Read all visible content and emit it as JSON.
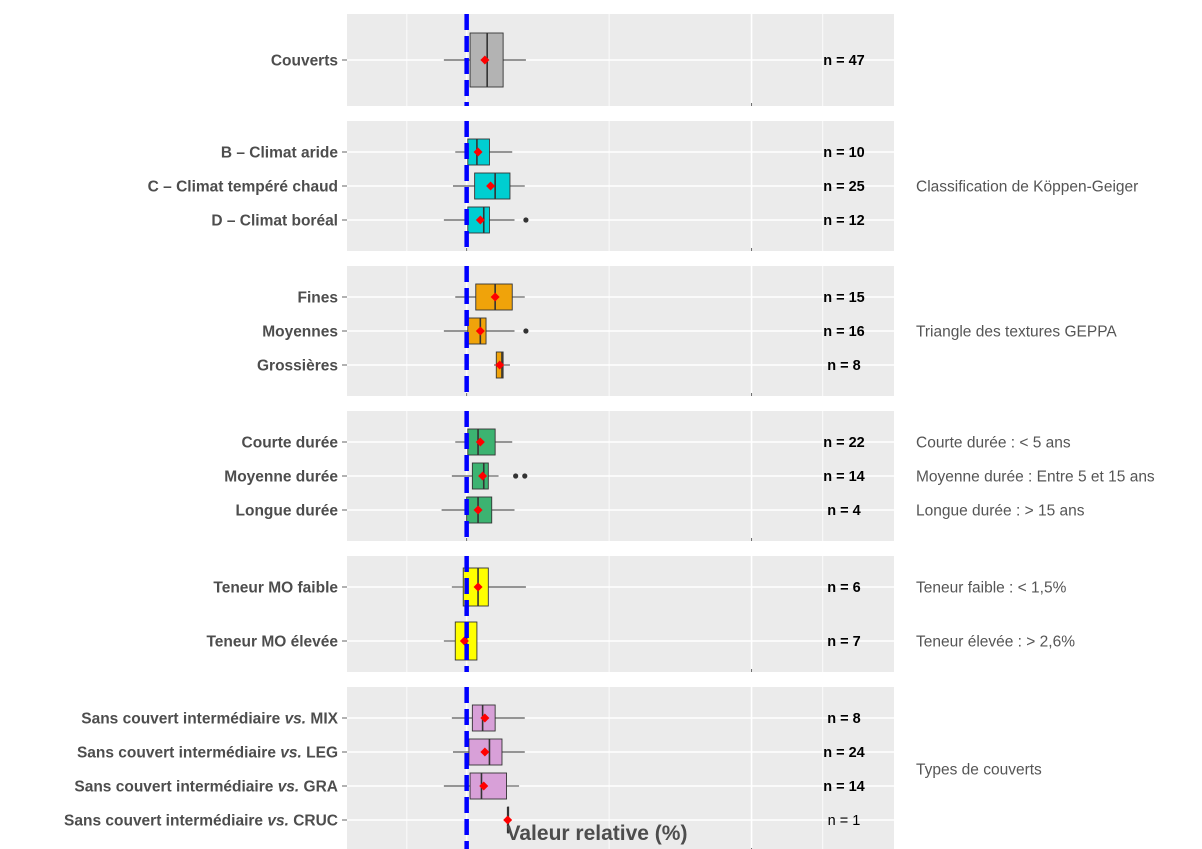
{
  "chart_data": {
    "type": "boxplot",
    "xlabel": "Valeur relative (%)",
    "x_ticks": [
      0,
      250
    ],
    "xlim": [
      -105,
      375
    ],
    "reference_line_x": 0,
    "colors": {
      "panel_bg": "#ebebeb",
      "grid": "#ffffff",
      "box_outline": "#333333",
      "mean_marker": "#ff0000",
      "reference_line": "#0000ff",
      "outlier": "#333333"
    },
    "groups": [
      {
        "note_lines": [],
        "color": "#b3b3b3",
        "categories": [
          {
            "label": "Couverts",
            "label_italic": "",
            "label_suffix": "",
            "n_text": "n = 47",
            "n_bold": true,
            "whisker_low": -20,
            "q1": 3,
            "median": 18,
            "q3": 32,
            "whisker_high": 52,
            "mean": 16,
            "outliers": []
          }
        ]
      },
      {
        "note_lines": [
          {
            "text": "Classification de Köppen-Geiger",
            "row": 1
          }
        ],
        "color": "#00ced1",
        "categories": [
          {
            "label": "B – Climat aride",
            "label_italic": "",
            "label_suffix": "",
            "n_text": "n = 10",
            "n_bold": true,
            "whisker_low": -10,
            "q1": 1,
            "median": 9,
            "q3": 20,
            "whisker_high": 40,
            "mean": 10,
            "outliers": []
          },
          {
            "label": "C – Climat tempéré chaud",
            "label_italic": "",
            "label_suffix": "",
            "n_text": "n = 25",
            "n_bold": true,
            "whisker_low": -12,
            "q1": 7,
            "median": 25,
            "q3": 38,
            "whisker_high": 51,
            "mean": 21,
            "outliers": []
          },
          {
            "label": "D – Climat boréal",
            "label_italic": "",
            "label_suffix": "",
            "n_text": "n = 12",
            "n_bold": true,
            "whisker_low": -20,
            "q1": 1,
            "median": 15,
            "q3": 20,
            "whisker_high": 42,
            "mean": 12,
            "outliers": [
              52
            ]
          }
        ]
      },
      {
        "note_lines": [
          {
            "text": "Triangle des textures GEPPA",
            "row": 1
          }
        ],
        "color": "#f0a30a",
        "categories": [
          {
            "label": "Fines",
            "label_italic": "",
            "label_suffix": "",
            "n_text": "n = 15",
            "n_bold": true,
            "whisker_low": -10,
            "q1": 8,
            "median": 25,
            "q3": 40,
            "whisker_high": 51,
            "mean": 25,
            "outliers": []
          },
          {
            "label": "Moyennes",
            "label_italic": "",
            "label_suffix": "",
            "n_text": "n = 16",
            "n_bold": true,
            "whisker_low": -20,
            "q1": 1,
            "median": 12,
            "q3": 17,
            "whisker_high": 42,
            "mean": 12,
            "outliers": [
              52
            ]
          },
          {
            "label": "Grossières",
            "label_italic": "",
            "label_suffix": "",
            "n_text": "n = 8",
            "n_bold": true,
            "whisker_low": 24,
            "q1": 26,
            "median": 31,
            "q3": 32,
            "whisker_high": 38,
            "mean": 29,
            "outliers": []
          }
        ]
      },
      {
        "note_lines": [
          {
            "text": "Courte durée : < 5 ans",
            "row": 0
          },
          {
            "text": "Moyenne durée : Entre 5 et 15 ans",
            "row": 1
          },
          {
            "text": "Longue durée : > 15 ans",
            "row": 2
          }
        ],
        "color": "#3cb371",
        "categories": [
          {
            "label": "Courte durée",
            "label_italic": "",
            "label_suffix": "",
            "n_text": "n = 22",
            "n_bold": true,
            "whisker_low": -10,
            "q1": 1,
            "median": 10,
            "q3": 25,
            "whisker_high": 40,
            "mean": 12,
            "outliers": []
          },
          {
            "label": "Moyenne durée",
            "label_italic": "",
            "label_suffix": "",
            "n_text": "n = 14",
            "n_bold": true,
            "whisker_low": -13,
            "q1": 5,
            "median": 15,
            "q3": 19,
            "whisker_high": 28,
            "mean": 14,
            "outliers": [
              43,
              51
            ]
          },
          {
            "label": "Longue durée",
            "label_italic": "",
            "label_suffix": "",
            "n_text": "n = 4",
            "n_bold": true,
            "whisker_low": -22,
            "q1": 0,
            "median": 10,
            "q3": 22,
            "whisker_high": 42,
            "mean": 10,
            "outliers": []
          }
        ]
      },
      {
        "note_lines": [
          {
            "text": "Teneur faible : < 1,5%",
            "row": 0
          },
          {
            "text": "Teneur élevée : > 2,6%",
            "row": 1
          }
        ],
        "color": "#ffff00",
        "categories": [
          {
            "label": "Teneur MO faible",
            "label_italic": "",
            "label_suffix": "",
            "n_text": "n = 6",
            "n_bold": true,
            "whisker_low": -13,
            "q1": -3,
            "median": 10,
            "q3": 19,
            "whisker_high": 52,
            "mean": 10,
            "outliers": []
          },
          {
            "label": "Teneur MO élevée",
            "label_italic": "",
            "label_suffix": "",
            "n_text": "n = 7",
            "n_bold": true,
            "whisker_low": -20,
            "q1": -10,
            "median": 0,
            "q3": 9,
            "whisker_high": 9,
            "mean": -2,
            "outliers": []
          }
        ]
      },
      {
        "note_lines": [
          {
            "text": "Types de couverts",
            "row": 1.5
          }
        ],
        "color": "#d8a0d8",
        "categories": [
          {
            "label": "Sans couvert intermédiaire ",
            "label_italic": "vs.",
            "label_suffix": " MIX",
            "n_text": "n = 8",
            "n_bold": true,
            "whisker_low": -13,
            "q1": 5,
            "median": 14,
            "q3": 25,
            "whisker_high": 51,
            "mean": 16,
            "outliers": []
          },
          {
            "label": "Sans couvert intermédiaire ",
            "label_italic": "vs.",
            "label_suffix": " LEG",
            "n_text": "n = 24",
            "n_bold": true,
            "whisker_low": -12,
            "q1": 2,
            "median": 20,
            "q3": 31,
            "whisker_high": 51,
            "mean": 16,
            "outliers": []
          },
          {
            "label": "Sans couvert intermédiaire ",
            "label_italic": "vs.",
            "label_suffix": " GRA",
            "n_text": "n = 14",
            "n_bold": true,
            "whisker_low": -20,
            "q1": 3,
            "median": 13,
            "q3": 35,
            "whisker_high": 46,
            "mean": 15,
            "outliers": []
          },
          {
            "label": "Sans couvert intermédiaire ",
            "label_italic": "vs.",
            "label_suffix": " CRUC",
            "n_text": "n = 1",
            "n_bold": false,
            "whisker_low": 36,
            "q1": 36,
            "median": 36,
            "q3": 36,
            "whisker_high": 36,
            "mean": 36,
            "outliers": []
          }
        ]
      }
    ]
  }
}
